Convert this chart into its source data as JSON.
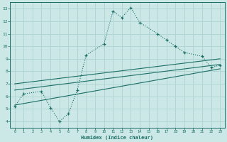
{
  "title": "",
  "xlabel": "Humidex (Indice chaleur)",
  "bg_color": "#cce8e6",
  "grid_color": "#b0d5d3",
  "line_color": "#1a6e65",
  "xlim": [
    -0.5,
    23.5
  ],
  "ylim": [
    3.5,
    13.5
  ],
  "xticks": [
    0,
    1,
    2,
    3,
    4,
    5,
    6,
    7,
    8,
    9,
    10,
    11,
    12,
    13,
    14,
    15,
    16,
    17,
    18,
    19,
    20,
    21,
    22,
    23
  ],
  "yticks": [
    4,
    5,
    6,
    7,
    8,
    9,
    10,
    11,
    12,
    13
  ],
  "jagged_x": [
    0,
    1,
    3,
    4,
    5,
    6,
    7,
    8,
    10,
    11,
    12,
    13,
    14,
    16,
    17,
    18,
    19,
    21,
    22,
    23
  ],
  "jagged_y": [
    5.2,
    6.2,
    6.4,
    5.1,
    4.0,
    4.6,
    6.5,
    9.3,
    10.2,
    12.8,
    12.3,
    13.1,
    11.9,
    11.0,
    10.5,
    10.0,
    9.5,
    9.2,
    8.3,
    8.5
  ],
  "line1_x": [
    0,
    23
  ],
  "line1_y": [
    5.3,
    8.2
  ],
  "line2_x": [
    0,
    23
  ],
  "line2_y": [
    6.5,
    8.55
  ],
  "line3_x": [
    0,
    23
  ],
  "line3_y": [
    7.0,
    9.0
  ]
}
